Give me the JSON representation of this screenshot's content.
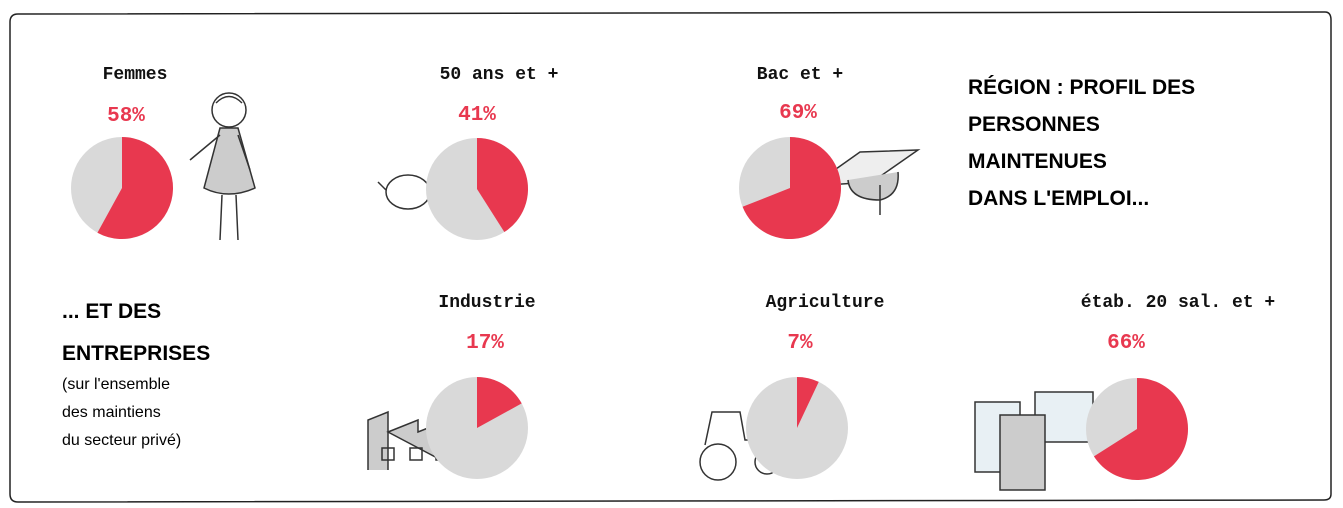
{
  "chart_data": [
    {
      "type": "pie",
      "title": "Femmes",
      "values": [
        58
      ],
      "value_labels": [
        "58%"
      ],
      "color": "#e8384f",
      "rest_color": "#d9d9d9"
    },
    {
      "type": "pie",
      "title": "50 ans et +",
      "values": [
        41
      ],
      "value_labels": [
        "41%"
      ],
      "color": "#e8384f",
      "rest_color": "#d9d9d9"
    },
    {
      "type": "pie",
      "title": "Bac et +",
      "values": [
        69
      ],
      "value_labels": [
        "69%"
      ],
      "color": "#e8384f",
      "rest_color": "#d9d9d9"
    },
    {
      "type": "pie",
      "title": "Industrie",
      "values": [
        17
      ],
      "value_labels": [
        "17%"
      ],
      "color": "#e8384f",
      "rest_color": "#d9d9d9"
    },
    {
      "type": "pie",
      "title": "Agriculture",
      "values": [
        7
      ],
      "value_labels": [
        "7%"
      ],
      "color": "#e8384f",
      "rest_color": "#d9d9d9"
    },
    {
      "type": "pie",
      "title": "étab. 20 sal. et +",
      "values": [
        66
      ],
      "value_labels": [
        "66%"
      ],
      "color": "#e8384f",
      "rest_color": "#d9d9d9"
    }
  ],
  "heading": [
    "RÉGION : PROFIL DES",
    "PERSONNES",
    "MAINTENUES",
    "DANS L'EMPLOI..."
  ],
  "subheading": [
    "... ET DES",
    "ENTREPRISES"
  ],
  "note": [
    "(sur l'ensemble",
    "des maintiens",
    "du secteur privé)"
  ]
}
